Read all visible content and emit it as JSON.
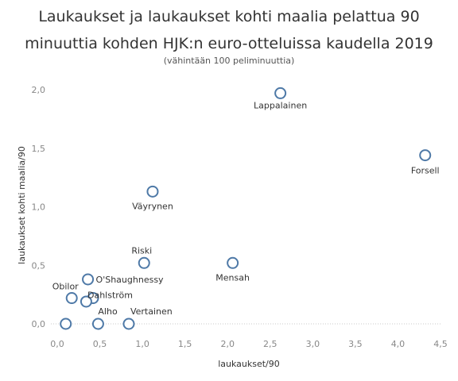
{
  "title_line1": "Laukaukset ja laukaukset kohti maalia pelattua 90",
  "title_line2": "minuuttia kohden HJK:n euro-otteluissa kaudella 2019",
  "subtitle": "(vähintään 100 peliminuuttia)",
  "chart_data": {
    "type": "scatter",
    "xlabel": "laukaukset/90",
    "ylabel": "laukaukset kohti maalia/90",
    "xlim": [
      0,
      4.5
    ],
    "ylim": [
      0,
      2.0
    ],
    "x_ticks": [
      "0,0",
      "0,5",
      "1,0",
      "1,5",
      "2,0",
      "2,5",
      "3,0",
      "3,5",
      "4,0",
      "4,5"
    ],
    "y_ticks": [
      "0,0",
      "0,5",
      "1,0",
      "1,5",
      "2,0"
    ],
    "grid": false,
    "marker_color": "#4e79a7",
    "points": [
      {
        "name": "Lappalainen",
        "x": 2.62,
        "y": 1.97
      },
      {
        "name": "Forsell",
        "x": 4.32,
        "y": 1.44
      },
      {
        "name": "Väyrynen",
        "x": 1.12,
        "y": 1.13
      },
      {
        "name": "Riski",
        "x": 1.02,
        "y": 0.52
      },
      {
        "name": "Mensah",
        "x": 2.06,
        "y": 0.52
      },
      {
        "name": "O'Shaughnessy",
        "x": 0.36,
        "y": 0.38
      },
      {
        "name": "Obilor",
        "x": 0.17,
        "y": 0.22
      },
      {
        "name": "Dahlström",
        "x": 0.42,
        "y": 0.22
      },
      {
        "name": "",
        "x": 0.34,
        "y": 0.19
      },
      {
        "name": "",
        "x": 0.1,
        "y": 0.0
      },
      {
        "name": "Alho",
        "x": 0.48,
        "y": 0.0
      },
      {
        "name": "Vertainen",
        "x": 0.84,
        "y": 0.0
      }
    ]
  }
}
